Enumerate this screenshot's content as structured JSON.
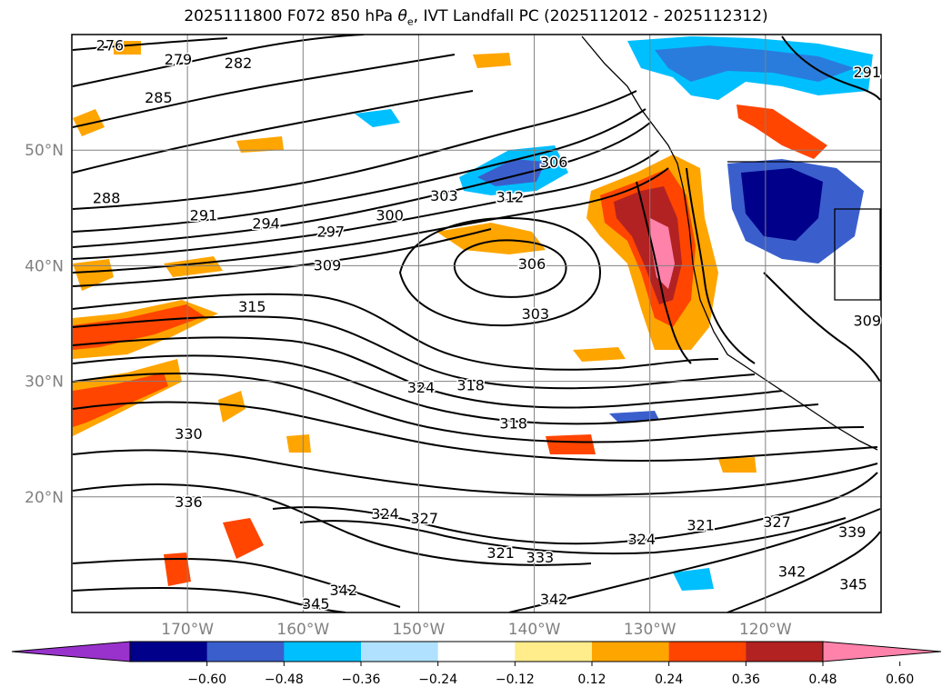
{
  "title_prefix": "2025111800 F072 850 hPa ",
  "title_symbol": "θ",
  "title_symbol_sub": "e",
  "title_suffix": ", IVT Landfall PC (2025112012 - 2025112312)",
  "chart_data": {
    "type": "contour_map",
    "title": "2025111800 F072 850 hPa θe, IVT Landfall PC (2025112012 - 2025112312)",
    "lon_range": [
      -180,
      -110
    ],
    "lat_range": [
      10,
      60
    ],
    "lat_ticks": [
      {
        "value": 20,
        "label": "20°N"
      },
      {
        "value": 30,
        "label": "30°N"
      },
      {
        "value": 40,
        "label": "40°N"
      },
      {
        "value": 50,
        "label": "50°N"
      }
    ],
    "lon_ticks": [
      {
        "value": -170,
        "label": "170°W"
      },
      {
        "value": -160,
        "label": "160°W"
      },
      {
        "value": -150,
        "label": "150°W"
      },
      {
        "value": -140,
        "label": "140°W"
      },
      {
        "value": -130,
        "label": "130°W"
      },
      {
        "value": -120,
        "label": "120°W"
      }
    ],
    "grid": true,
    "contour_labels": [
      {
        "text": "276",
        "lon": -176.7,
        "lat": 59.0
      },
      {
        "text": "279",
        "lon": -170.8,
        "lat": 57.8
      },
      {
        "text": "282",
        "lon": -165.6,
        "lat": 57.5
      },
      {
        "text": "285",
        "lon": -172.5,
        "lat": 54.5
      },
      {
        "text": "288",
        "lon": -177.0,
        "lat": 45.8
      },
      {
        "text": "291",
        "lon": -168.6,
        "lat": 44.3
      },
      {
        "text": "294",
        "lon": -163.2,
        "lat": 43.6
      },
      {
        "text": "297",
        "lon": -157.6,
        "lat": 42.9
      },
      {
        "text": "300",
        "lon": -152.5,
        "lat": 44.3
      },
      {
        "text": "303",
        "lon": -147.8,
        "lat": 46.0
      },
      {
        "text": "306",
        "lon": -138.3,
        "lat": 48.9
      },
      {
        "text": "312",
        "lon": -142.1,
        "lat": 45.9
      },
      {
        "text": "309",
        "lon": -157.9,
        "lat": 40.0
      },
      {
        "text": "306",
        "lon": -140.2,
        "lat": 40.1
      },
      {
        "text": "303",
        "lon": -139.9,
        "lat": 35.8
      },
      {
        "text": "315",
        "lon": -164.4,
        "lat": 36.4
      },
      {
        "text": "324",
        "lon": -149.8,
        "lat": 29.4
      },
      {
        "text": "318",
        "lon": -145.5,
        "lat": 29.6
      },
      {
        "text": "318",
        "lon": -141.8,
        "lat": 26.3
      },
      {
        "text": "330",
        "lon": -169.9,
        "lat": 25.4
      },
      {
        "text": "336",
        "lon": -169.9,
        "lat": 19.5
      },
      {
        "text": "324",
        "lon": -152.9,
        "lat": 18.5
      },
      {
        "text": "327",
        "lon": -149.5,
        "lat": 18.1
      },
      {
        "text": "321",
        "lon": -142.9,
        "lat": 15.1
      },
      {
        "text": "333",
        "lon": -139.5,
        "lat": 14.7
      },
      {
        "text": "324",
        "lon": -130.7,
        "lat": 16.3
      },
      {
        "text": "321",
        "lon": -125.6,
        "lat": 17.5
      },
      {
        "text": "327",
        "lon": -119.0,
        "lat": 17.8
      },
      {
        "text": "339",
        "lon": -112.5,
        "lat": 16.9
      },
      {
        "text": "342",
        "lon": -117.7,
        "lat": 13.5
      },
      {
        "text": "345",
        "lon": -112.4,
        "lat": 12.4
      },
      {
        "text": "342",
        "lon": -138.3,
        "lat": 11.1
      },
      {
        "text": "342",
        "lon": -156.5,
        "lat": 11.9
      },
      {
        "text": "345",
        "lon": -158.9,
        "lat": 10.7
      },
      {
        "text": "291",
        "lon": -111.2,
        "lat": 56.7
      },
      {
        "text": "309",
        "lon": -111.2,
        "lat": 35.2
      }
    ],
    "colorbar": {
      "ticks": [
        "−0.60",
        "−0.48",
        "−0.36",
        "−0.24",
        "−0.12",
        "0.12",
        "0.24",
        "0.36",
        "0.48",
        "0.60"
      ],
      "colors": [
        "#9932cc",
        "#00008b",
        "#3a5fcd",
        "#00bfff",
        "#b0e2ff",
        "#ffffff",
        "#ffec8b",
        "#ffa500",
        "#ff4500",
        "#b22222",
        "#ff82ab"
      ]
    }
  }
}
